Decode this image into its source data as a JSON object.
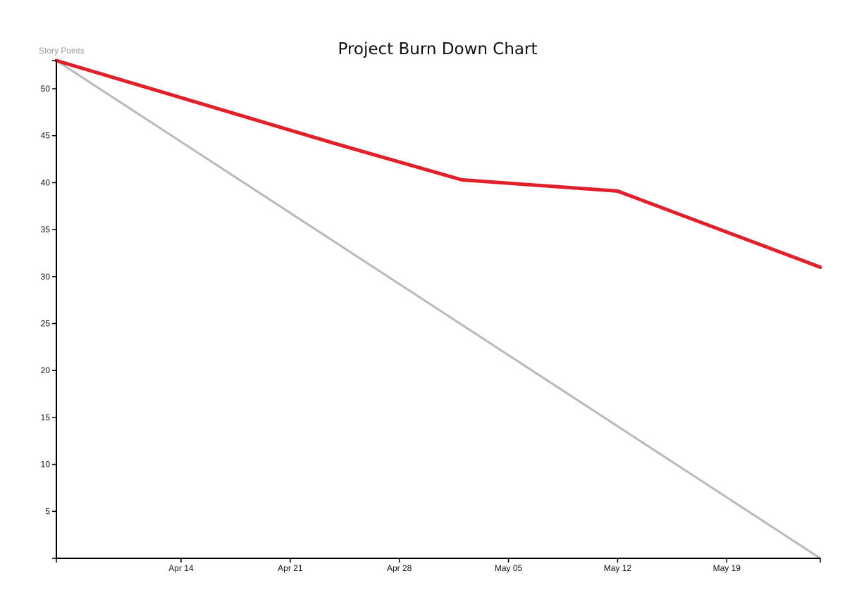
{
  "chart_data": {
    "type": "line",
    "title": "Project Burn Down Chart",
    "xlabel": "",
    "ylabel": "Story Points",
    "x_tick_labels": [
      "Apr 14",
      "Apr 21",
      "Apr 28",
      "May 05",
      "May 12",
      "May 19"
    ],
    "x_tick_dates": [
      "2014-04-14",
      "2014-04-21",
      "2014-04-28",
      "2014-05-05",
      "2014-05-12",
      "2014-05-19"
    ],
    "xlim": [
      "2014-04-06",
      "2014-05-25"
    ],
    "y_ticks": [
      5,
      10,
      15,
      20,
      25,
      30,
      35,
      40,
      45,
      50
    ],
    "ylim": [
      0,
      53
    ],
    "grid": false,
    "series": [
      {
        "color": "#b9b9b9",
        "x": [
          "2014-04-06",
          "2014-05-25"
        ],
        "y": [
          53,
          0
        ]
      },
      {
        "color": "#e0202a",
        "x": [
          "2014-04-06",
          "2014-04-24",
          "2014-05-02",
          "2014-05-12",
          "2014-05-25"
        ],
        "y": [
          53,
          44.1,
          40.3,
          39.1,
          31
        ]
      }
    ]
  }
}
